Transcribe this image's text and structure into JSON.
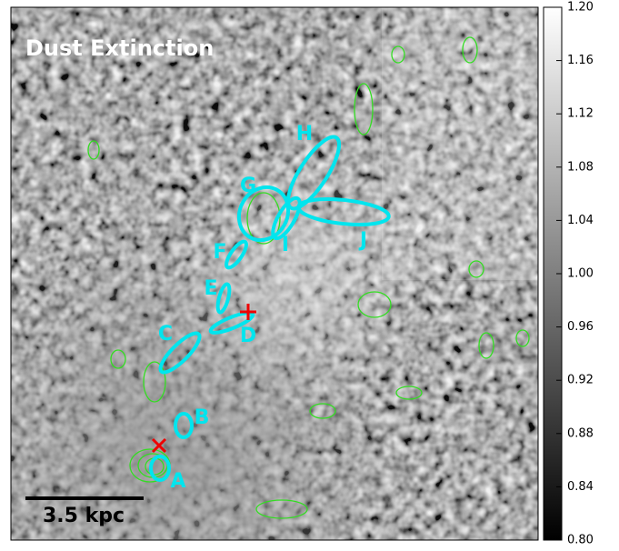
{
  "title": "Dust Extinction",
  "scale_bar": "3.5 kpc",
  "regions": [
    "A",
    "B",
    "C",
    "D",
    "E",
    "F",
    "G",
    "H",
    "I",
    "J"
  ],
  "colorbar": {
    "lim": [
      0.8,
      1.2
    ],
    "ticks": [
      {
        "value": 0.8,
        "label": "0.80"
      },
      {
        "value": 0.84,
        "label": "0.84"
      },
      {
        "value": 0.88,
        "label": "0.88"
      },
      {
        "value": 0.92,
        "label": "0.92"
      },
      {
        "value": 0.96,
        "label": "0.96"
      },
      {
        "value": 1.0,
        "label": "1.00"
      },
      {
        "value": 1.04,
        "label": "1.04"
      },
      {
        "value": 1.08,
        "label": "1.08"
      },
      {
        "value": 1.12,
        "label": "1.12"
      },
      {
        "value": 1.16,
        "label": "1.16"
      },
      {
        "value": 1.2,
        "label": "1.20"
      }
    ]
  }
}
